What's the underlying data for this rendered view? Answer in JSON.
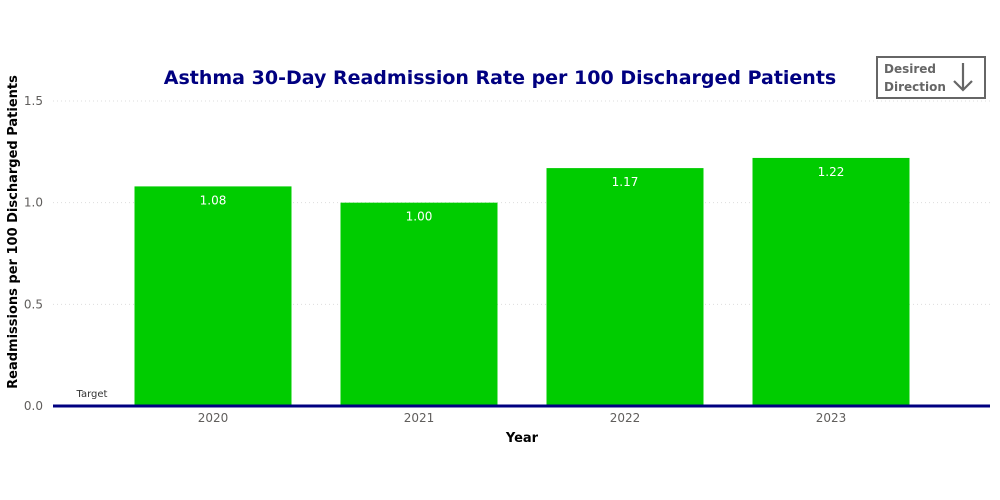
{
  "chart_data": {
    "type": "bar",
    "title": "Asthma 30-Day Readmission Rate per 100 Discharged Patients",
    "xlabel": "Year",
    "ylabel": "Readmissions per 100 Discharged Patients",
    "categories": [
      "2020",
      "2021",
      "2022",
      "2023"
    ],
    "values": [
      1.08,
      1.0,
      1.17,
      1.22
    ],
    "data_labels": [
      "1.08",
      "1.00",
      "1.17",
      "1.22"
    ],
    "ylim": [
      0,
      1.5
    ],
    "yticks": [
      0,
      0.5,
      1.0,
      1.5
    ],
    "ytick_labels": [
      "0.0",
      "0.5",
      "1.0",
      "1.5"
    ],
    "grid": true,
    "target": {
      "label": "Target",
      "value": 0
    },
    "bar_color": "#00CC00",
    "target_color": "#000080",
    "desired_direction": {
      "line1": "Desired",
      "line2": "Direction",
      "icon": "arrow-down-icon"
    }
  }
}
